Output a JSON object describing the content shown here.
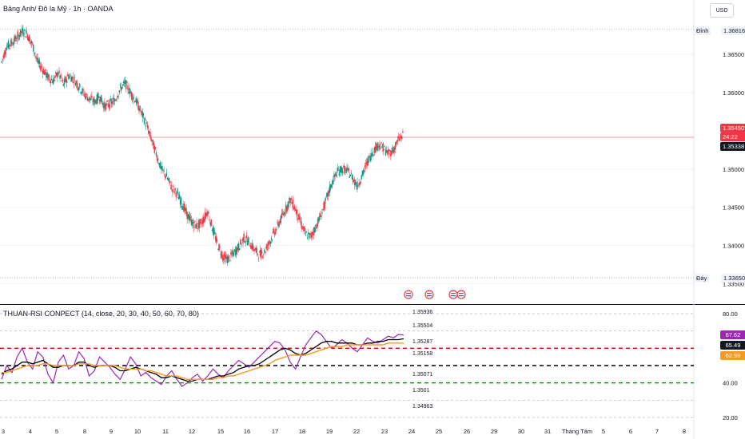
{
  "header": {
    "title": "Bảng Anh/ Đô la Mỹ · 1h · OANDA",
    "currency": "USD"
  },
  "price_axis": {
    "labels": [
      "1.36500",
      "1.36000",
      "1.35000",
      "1.34500",
      "1.34000",
      "1.33500"
    ],
    "high_label": "Đỉnh",
    "high_value": "1.36816",
    "low_label": "Đáy",
    "low_value": "1.33650",
    "current_price": "1.35450",
    "countdown": "24:22",
    "last_price": "1.35338"
  },
  "rsi": {
    "title": "THUAN-RSI CONPECT (14, close, 20, 30, 40, 50, 60, 70, 80)",
    "axis_labels": [
      "80.00",
      "40.00",
      "20.00"
    ],
    "level_labels": [
      "1.35936",
      "1.35504",
      "1.35287",
      "1.35158",
      "1.35071",
      "1.3501",
      "1.34963"
    ],
    "badges": [
      {
        "value": "67.62",
        "color": "#9c27b0"
      },
      {
        "value": "65.49",
        "color": "#131722"
      },
      {
        "value": "62.98",
        "color": "#f59a23"
      }
    ]
  },
  "time_axis": [
    "3",
    "4",
    "5",
    "8",
    "9",
    "10",
    "11",
    "12",
    "15",
    "16",
    "17",
    "18",
    "19",
    "22",
    "23",
    "24",
    "25",
    "26",
    "29",
    "30",
    "31",
    "Tháng Tám",
    "5",
    "6",
    "7",
    "8"
  ],
  "colors": {
    "up": "#089981",
    "down": "#f23645",
    "rsi": "#9c27b0",
    "rsi_ma": "#000000",
    "rsi_ma2": "#f59a23",
    "level_red": "#d50000",
    "level_black": "#000000",
    "level_green": "#00a000"
  },
  "chart_data": [
    {
      "type": "candlestick",
      "title": "Bảng Anh/ Đô la Mỹ · 1h · OANDA",
      "ylim": [
        1.3335,
        1.37
      ],
      "close_path": [
        1.364,
        1.366,
        1.3665,
        1.3672,
        1.368,
        1.3676,
        1.3662,
        1.364,
        1.363,
        1.362,
        1.3615,
        1.3626,
        1.361,
        1.3622,
        1.3618,
        1.3608,
        1.3598,
        1.3592,
        1.3588,
        1.3595,
        1.3582,
        1.3585,
        1.359,
        1.3605,
        1.3612,
        1.36,
        1.359,
        1.3575,
        1.356,
        1.354,
        1.352,
        1.35,
        1.349,
        1.3476,
        1.3468,
        1.3455,
        1.344,
        1.343,
        1.3425,
        1.3432,
        1.3445,
        1.342,
        1.34,
        1.3385,
        1.3382,
        1.339,
        1.3398,
        1.341,
        1.3405,
        1.3395,
        1.3388,
        1.3392,
        1.3405,
        1.3418,
        1.3432,
        1.3446,
        1.346,
        1.3448,
        1.343,
        1.3415,
        1.3412,
        1.3425,
        1.344,
        1.346,
        1.348,
        1.3495,
        1.35,
        1.3498,
        1.349,
        1.3478,
        1.3492,
        1.351,
        1.3522,
        1.3532,
        1.3528,
        1.352,
        1.3525,
        1.3538,
        1.3545
      ]
    },
    {
      "type": "line",
      "title": "THUAN-RSI CONPECT (14, close, 20, 30, 40, 50, 60, 70, 80)",
      "ylim": [
        20,
        80
      ],
      "levels": [
        60,
        50,
        40
      ],
      "series": [
        {
          "name": "RSI",
          "values": [
            42,
            50,
            46,
            55,
            60,
            52,
            48,
            58,
            55,
            45,
            40,
            52,
            56,
            48,
            50,
            58,
            54,
            44,
            47,
            55,
            52,
            49,
            45,
            42,
            48,
            55,
            51,
            44,
            46,
            43,
            41,
            39,
            44,
            47,
            42,
            38,
            40,
            43,
            45,
            41,
            44,
            48,
            45,
            43,
            47,
            50,
            53,
            51,
            49,
            52,
            55,
            58,
            61,
            64,
            63,
            59,
            52,
            48,
            55,
            62,
            66,
            70,
            68,
            64,
            60,
            62,
            65,
            63,
            60,
            58,
            62,
            66,
            64,
            63,
            65,
            67,
            66,
            68,
            67.62
          ]
        },
        {
          "name": "MA",
          "values": [
            45,
            47,
            48,
            50,
            52,
            52,
            51,
            52,
            53,
            51,
            49,
            49,
            50,
            50,
            50,
            52,
            52,
            50,
            49,
            50,
            50,
            50,
            49,
            47,
            47,
            48,
            49,
            48,
            47,
            46,
            45,
            43,
            43,
            44,
            43,
            42,
            41,
            41,
            42,
            42,
            42,
            43,
            44,
            44,
            45,
            46,
            48,
            49,
            50,
            50,
            51,
            53,
            55,
            57,
            59,
            60,
            59,
            57,
            56,
            57,
            59,
            61,
            63,
            64,
            64,
            63,
            63,
            63,
            63,
            62,
            62,
            63,
            63,
            64,
            64,
            65,
            65,
            65,
            65.49
          ]
        },
        {
          "name": "MA2",
          "values": [
            46,
            46,
            47,
            48,
            49,
            50,
            50,
            50,
            51,
            51,
            50,
            50,
            50,
            50,
            50,
            51,
            51,
            51,
            50,
            50,
            50,
            50,
            50,
            49,
            48,
            48,
            48,
            48,
            47,
            47,
            46,
            45,
            44,
            44,
            44,
            43,
            42,
            42,
            42,
            42,
            42,
            42,
            43,
            43,
            44,
            44,
            45,
            46,
            47,
            48,
            49,
            50,
            51,
            53,
            54,
            55,
            56,
            56,
            56,
            56,
            57,
            58,
            59,
            60,
            61,
            61,
            61,
            62,
            62,
            62,
            62,
            62,
            62,
            62,
            62,
            63,
            63,
            63,
            62.98
          ]
        }
      ]
    }
  ]
}
